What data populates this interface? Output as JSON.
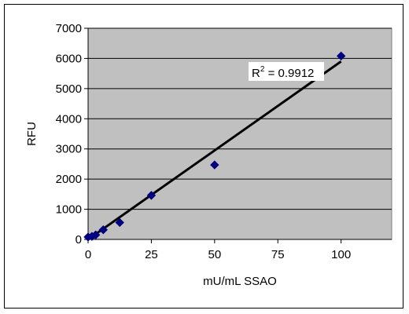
{
  "chart_data": {
    "type": "scatter",
    "xlabel": "mU/mL SSAO",
    "ylabel": "RFU",
    "xlim": [
      0,
      120
    ],
    "ylim": [
      0,
      7000
    ],
    "x_ticks": [
      0,
      25,
      50,
      75,
      100
    ],
    "y_ticks": [
      0,
      1000,
      2000,
      3000,
      4000,
      5000,
      6000,
      7000
    ],
    "grid": {
      "horizontal": true,
      "vertical": false
    },
    "plot_background": "#c0c0c0",
    "series": [
      {
        "marker": "diamond",
        "color": "#000080",
        "points": [
          {
            "x": 0,
            "y": 80
          },
          {
            "x": 1.5,
            "y": 100
          },
          {
            "x": 3,
            "y": 150
          },
          {
            "x": 6,
            "y": 320
          },
          {
            "x": 12.5,
            "y": 560
          },
          {
            "x": 25,
            "y": 1460
          },
          {
            "x": 50,
            "y": 2470
          },
          {
            "x": 100,
            "y": 6080
          }
        ]
      }
    ],
    "trendline": {
      "type": "linear",
      "color": "#000000",
      "start": {
        "x": 0,
        "y": 0
      },
      "end": {
        "x": 100,
        "y": 5900
      }
    },
    "annotation": {
      "text_prefix": "R",
      "superscript": "2",
      "text_suffix": " = 0.9912"
    }
  }
}
